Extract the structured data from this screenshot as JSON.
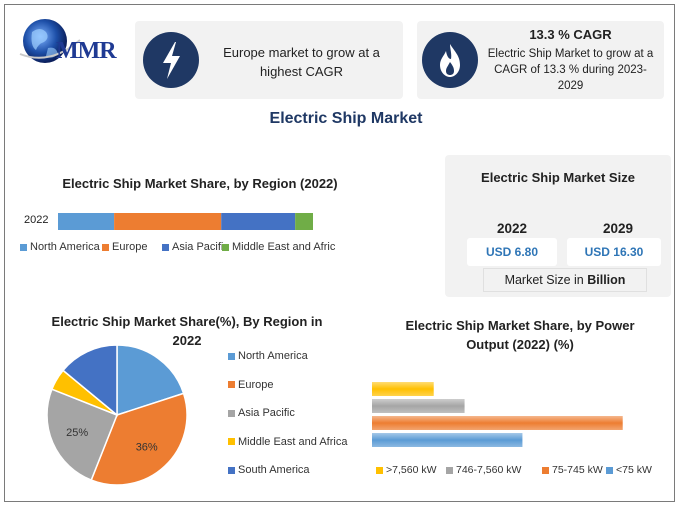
{
  "logo": {
    "text": "MMR"
  },
  "colors": {
    "navy": "#1f3864",
    "blue": "#5b9bd5",
    "orange": "#ed7d31",
    "gray": "#a5a5a5",
    "yellow": "#ffc000",
    "darkblue": "#4472c4",
    "green": "#70ad47"
  },
  "card_left": {
    "icon": "lightning-icon",
    "text": "Europe market to grow at a highest CAGR"
  },
  "card_right": {
    "icon": "flame-icon",
    "title": "13.3 % CAGR",
    "text": "Electric Ship Market to grow at a CAGR of 13.3 % during 2023-2029"
  },
  "main_title": "Electric Ship Market",
  "market_size": {
    "title": "Electric Ship Market Size",
    "year1": "2022",
    "value1": "USD 6.80",
    "year2": "2029",
    "value2": "USD 16.30",
    "unit_prefix": "Market Size in ",
    "unit_bold": "Billion"
  },
  "chart_data": [
    {
      "type": "bar",
      "orientation": "horizontal-stacked",
      "title": "Electric Ship Market Share, by Region (2022)",
      "categories": [
        "2022"
      ],
      "series": [
        {
          "name": "North America",
          "values": [
            22
          ],
          "color": "#5b9bd5"
        },
        {
          "name": "Europe",
          "values": [
            42
          ],
          "color": "#ed7d31"
        },
        {
          "name": "Asia Pacific",
          "values": [
            29
          ],
          "color": "#4472c4"
        },
        {
          "name": "Middle East and Afric",
          "values": [
            7
          ],
          "color": "#70ad47"
        }
      ],
      "legend": "bottom"
    },
    {
      "type": "pie",
      "title": "Electric Ship Market Share(%), By Region in 2022",
      "slices": [
        {
          "label": "North America",
          "value": 20,
          "color": "#5b9bd5",
          "data_label": ""
        },
        {
          "label": "Europe",
          "value": 36,
          "color": "#ed7d31",
          "data_label": "36%"
        },
        {
          "label": "Asia Pacific",
          "value": 25,
          "color": "#a5a5a5",
          "data_label": "25%"
        },
        {
          "label": "Middle East and Africa",
          "value": 5,
          "color": "#ffc000",
          "data_label": ""
        },
        {
          "label": "South America",
          "value": 14,
          "color": "#4472c4",
          "data_label": ""
        }
      ],
      "legend": "right"
    },
    {
      "type": "bar",
      "orientation": "horizontal",
      "title": "Electric Ship Market Share, by Power Output (2022) (%)",
      "series": [
        {
          "name": ">7,560 kW",
          "value": 16,
          "color": "#ffc000"
        },
        {
          "name": "746-7,560 kW",
          "value": 24,
          "color": "#a5a5a5"
        },
        {
          "name": "75-745 kW",
          "value": 65,
          "color": "#ed7d31"
        },
        {
          "name": "<75 kW",
          "value": 39,
          "color": "#5b9bd5"
        }
      ],
      "xlim": [
        0,
        70
      ],
      "legend": "bottom"
    }
  ]
}
